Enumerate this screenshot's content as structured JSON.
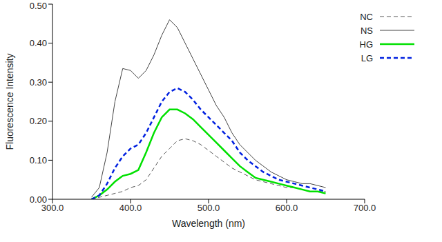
{
  "chart_data": {
    "type": "line",
    "x_label": "Wavelength (nm)",
    "y_label": "Fluorescence Intensity",
    "x": [
      350,
      360,
      370,
      380,
      390,
      400,
      410,
      420,
      430,
      440,
      450,
      460,
      470,
      480,
      490,
      500,
      510,
      520,
      530,
      540,
      550,
      560,
      570,
      580,
      590,
      600,
      610,
      620,
      630,
      640,
      650
    ],
    "series": [
      {
        "name": "NC",
        "color": "#555555",
        "line_style": "dashed",
        "values": [
          0,
          0.005,
          0.01,
          0.015,
          0.02,
          0.03,
          0.035,
          0.05,
          0.08,
          0.11,
          0.13,
          0.15,
          0.155,
          0.15,
          0.14,
          0.125,
          0.11,
          0.095,
          0.08,
          0.07,
          0.06,
          0.05,
          0.045,
          0.04,
          0.035,
          0.03,
          0.03,
          0.025,
          0.02,
          0.02,
          0.02
        ]
      },
      {
        "name": "NS",
        "color": "#444444",
        "line_style": "solid",
        "values": [
          0.005,
          0.03,
          0.12,
          0.25,
          0.335,
          0.33,
          0.31,
          0.33,
          0.37,
          0.42,
          0.46,
          0.44,
          0.4,
          0.36,
          0.32,
          0.28,
          0.24,
          0.21,
          0.17,
          0.14,
          0.12,
          0.1,
          0.085,
          0.07,
          0.06,
          0.05,
          0.045,
          0.04,
          0.04,
          0.035,
          0.03
        ]
      },
      {
        "name": "HG",
        "color": "#00e000",
        "line_style": "solid",
        "values": [
          0,
          0.01,
          0.025,
          0.045,
          0.06,
          0.065,
          0.075,
          0.12,
          0.17,
          0.21,
          0.23,
          0.23,
          0.22,
          0.205,
          0.185,
          0.165,
          0.145,
          0.125,
          0.105,
          0.085,
          0.07,
          0.055,
          0.05,
          0.045,
          0.04,
          0.035,
          0.03,
          0.025,
          0.02,
          0.02,
          0.015
        ]
      },
      {
        "name": "LG",
        "color": "#0020e0",
        "line_style": "dashed",
        "values": [
          0,
          0.01,
          0.04,
          0.08,
          0.11,
          0.13,
          0.14,
          0.17,
          0.21,
          0.25,
          0.275,
          0.285,
          0.275,
          0.255,
          0.23,
          0.21,
          0.19,
          0.17,
          0.15,
          0.12,
          0.1,
          0.085,
          0.07,
          0.06,
          0.05,
          0.045,
          0.04,
          0.035,
          0.03,
          0.025,
          0.02
        ]
      }
    ],
    "xlim": [
      300,
      700
    ],
    "xticks": [
      {
        "value": 300,
        "label": "300.0"
      },
      {
        "value": 400,
        "label": "400.0"
      },
      {
        "value": 500,
        "label": "500.0"
      },
      {
        "value": 600,
        "label": "600.0"
      },
      {
        "value": 700,
        "label": "700.0"
      }
    ],
    "ylim": [
      0,
      0.5
    ],
    "yticks": [
      {
        "value": 0,
        "label": "0.00"
      },
      {
        "value": 0.1,
        "label": "0.10"
      },
      {
        "value": 0.2,
        "label": "0.20"
      },
      {
        "value": 0.3,
        "label": "0.30"
      },
      {
        "value": 0.4,
        "label": "0.40"
      },
      {
        "value": 0.5,
        "label": "0.50"
      }
    ],
    "grid": false,
    "legend": "upper right"
  }
}
